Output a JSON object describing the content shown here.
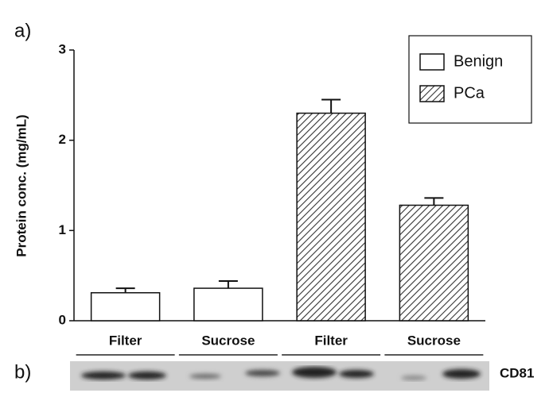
{
  "chart_data": {
    "type": "bar",
    "y_label": "Protein conc.  (mg/mL)",
    "categories": [
      "Filter",
      "Sucrose",
      "Filter",
      "Sucrose"
    ],
    "series": [
      {
        "name": "Benign",
        "color": "#ffffff",
        "hatch": false,
        "values": [
          0.31,
          0.36,
          null,
          null
        ],
        "errors": [
          0.05,
          0.08,
          null,
          null
        ]
      },
      {
        "name": "PCa",
        "color": "#ffffff",
        "hatch": true,
        "values": [
          null,
          null,
          2.3,
          1.28
        ],
        "errors": [
          null,
          null,
          0.15,
          0.08
        ]
      }
    ],
    "ylim": [
      0,
      3
    ],
    "yticks": [
      0,
      1,
      2,
      3
    ],
    "grid": false,
    "legend": "upper right"
  },
  "panel_labels": [
    "a)",
    "b)"
  ],
  "blot_label": "CD81"
}
